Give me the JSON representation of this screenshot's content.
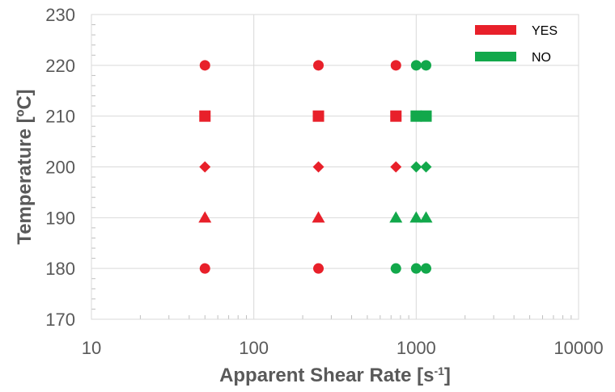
{
  "chart_data": {
    "type": "scatter",
    "xlabel": "Apparent Shear Rate [s",
    "xlabel_sup": "-1",
    "xlabel_end": "]",
    "ylabel": "Temperature [ºC]",
    "x_scale": "log",
    "xlim": [
      10,
      10000
    ],
    "ylim": [
      170,
      230
    ],
    "x_ticks": [
      "10",
      "100",
      "1000",
      "10000"
    ],
    "y_ticks": [
      "170",
      "180",
      "190",
      "200",
      "210",
      "220",
      "230"
    ],
    "grid": true,
    "legend_position": "top-right",
    "series": [
      {
        "name": "YES",
        "color": "#e8202a",
        "points": [
          {
            "x": 50,
            "y": 220,
            "marker": "circle"
          },
          {
            "x": 250,
            "y": 220,
            "marker": "circle"
          },
          {
            "x": 750,
            "y": 220,
            "marker": "circle"
          },
          {
            "x": 50,
            "y": 210,
            "marker": "square"
          },
          {
            "x": 250,
            "y": 210,
            "marker": "square"
          },
          {
            "x": 750,
            "y": 210,
            "marker": "square"
          },
          {
            "x": 50,
            "y": 200,
            "marker": "diamond"
          },
          {
            "x": 250,
            "y": 200,
            "marker": "diamond"
          },
          {
            "x": 750,
            "y": 200,
            "marker": "diamond"
          },
          {
            "x": 50,
            "y": 190,
            "marker": "triangle"
          },
          {
            "x": 250,
            "y": 190,
            "marker": "triangle"
          },
          {
            "x": 50,
            "y": 180,
            "marker": "circle"
          },
          {
            "x": 250,
            "y": 180,
            "marker": "circle"
          }
        ]
      },
      {
        "name": "NO",
        "color": "#12a84b",
        "points": [
          {
            "x": 1000,
            "y": 220,
            "marker": "circle"
          },
          {
            "x": 1150,
            "y": 220,
            "marker": "circle"
          },
          {
            "x": 1000,
            "y": 210,
            "marker": "square"
          },
          {
            "x": 1150,
            "y": 210,
            "marker": "square"
          },
          {
            "x": 1000,
            "y": 200,
            "marker": "diamond"
          },
          {
            "x": 1150,
            "y": 200,
            "marker": "diamond"
          },
          {
            "x": 750,
            "y": 190,
            "marker": "triangle"
          },
          {
            "x": 1000,
            "y": 190,
            "marker": "triangle"
          },
          {
            "x": 1150,
            "y": 190,
            "marker": "triangle"
          },
          {
            "x": 750,
            "y": 180,
            "marker": "circle"
          },
          {
            "x": 1000,
            "y": 180,
            "marker": "circle"
          },
          {
            "x": 1150,
            "y": 180,
            "marker": "circle"
          }
        ]
      }
    ]
  }
}
